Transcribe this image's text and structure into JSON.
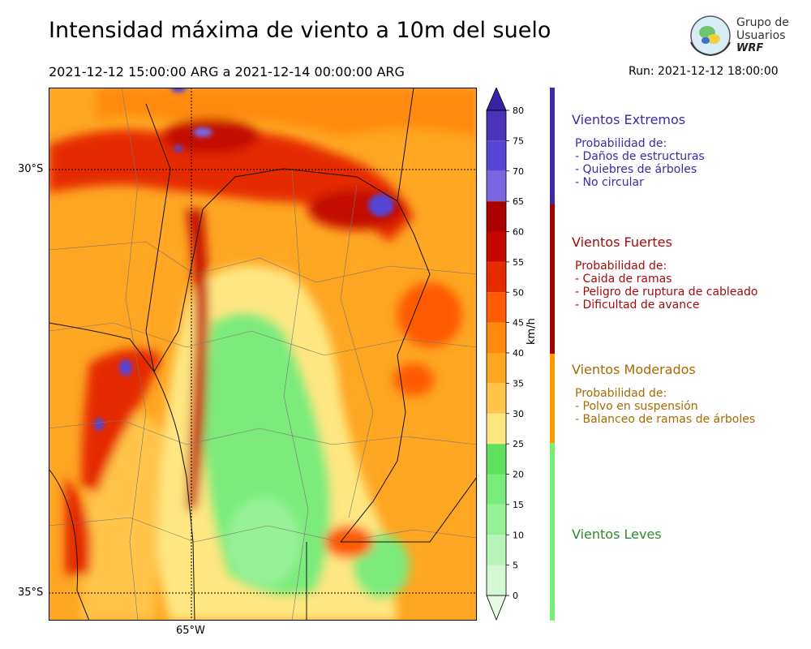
{
  "header": {
    "title": "Intensidad máxima de viento a 10m del suelo",
    "period": "2021-12-12 15:00:00 ARG  a  2021-12-14 00:00:00 ARG",
    "run": "Run: 2021-12-12 18:00:00"
  },
  "logo": {
    "line1": "Grupo de",
    "line2": "Usuarios",
    "line3": "WRF"
  },
  "map": {
    "lat_labels": [
      "30°S",
      "35°S"
    ],
    "lon_labels": [
      "65°W"
    ]
  },
  "colorbar": {
    "unit_label": "km/h",
    "ticks": [
      "0",
      "5",
      "10",
      "15",
      "20",
      "25",
      "30",
      "35",
      "40",
      "45",
      "50",
      "55",
      "60",
      "65",
      "70",
      "75",
      "80"
    ],
    "colors": [
      "#e6fae6",
      "#d3f8d3",
      "#b5f5b5",
      "#96f196",
      "#7beb7b",
      "#5fe15f",
      "#ffe680",
      "#ffc44a",
      "#ffa622",
      "#ff8a0e",
      "#ff5a05",
      "#e52b00",
      "#c40800",
      "#a90000",
      "#7a66e0",
      "#5745d6",
      "#4a33b8",
      "#3a22a6"
    ]
  },
  "legend": {
    "categories": [
      {
        "name": "Vientos Extremos",
        "lines": [
          "Probabilidad de:",
          "- Daños de estructuras",
          "- Quiebres de árboles",
          "- No circular"
        ],
        "color": "#3c2aa3"
      },
      {
        "name": "Vientos Fuertes",
        "lines": [
          "Probabilidad de:",
          "- Caida de ramas",
          "- Peligro de ruptura de cableado",
          "- Dificultad de avance"
        ],
        "color": "#9e0b0b"
      },
      {
        "name": "Vientos Moderados",
        "lines": [
          "Probabilidad de:",
          "- Polvo en suspensión",
          "- Balanceo de ramas de árboles"
        ],
        "color": "#a86a00"
      },
      {
        "name": "Vientos Leves",
        "lines": [],
        "color": "#2e8b2e"
      }
    ],
    "bar_colors": [
      "#3c2aa3",
      "#a00000",
      "#ff9900",
      "#77f077"
    ]
  }
}
